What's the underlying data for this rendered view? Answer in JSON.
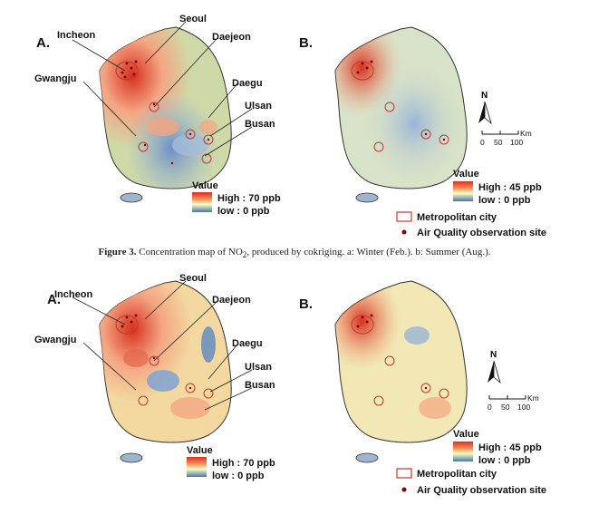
{
  "figure_caption": {
    "label": "Figure 3.",
    "text_before_sub": " Concentration map of NO",
    "subscript": "2",
    "text_after_sub": ", produced by cokriging. a: Winter (Feb.). b: Summer (Aug.)."
  },
  "cities": {
    "seoul": "Seoul",
    "incheon": "Incheon",
    "daejeon": "Daejeon",
    "gwangju": "Gwangju",
    "daegu": "Daegu",
    "ulsan": "Ulsan",
    "busan": "Busan"
  },
  "panels": {
    "a": "A.",
    "b": "B."
  },
  "legend_value_title": "Value",
  "legend_left_high": "High : 70 ppb",
  "legend_left_low": "low : 0 ppb",
  "legend_right_high": "High : 45 ppb",
  "legend_right_low": "low : 0 ppb",
  "legend_metro": "Metropolitan city",
  "legend_site": "Air Quality observation site",
  "north_arrow": "N",
  "scale_labels": [
    "0",
    "50",
    "100",
    "Km"
  ],
  "colors": {
    "high": "#d7301f",
    "mid": "#ffffbf",
    "low": "#4575b4",
    "metro_outline": "#c0392b",
    "site_dot": "#8b0000"
  }
}
